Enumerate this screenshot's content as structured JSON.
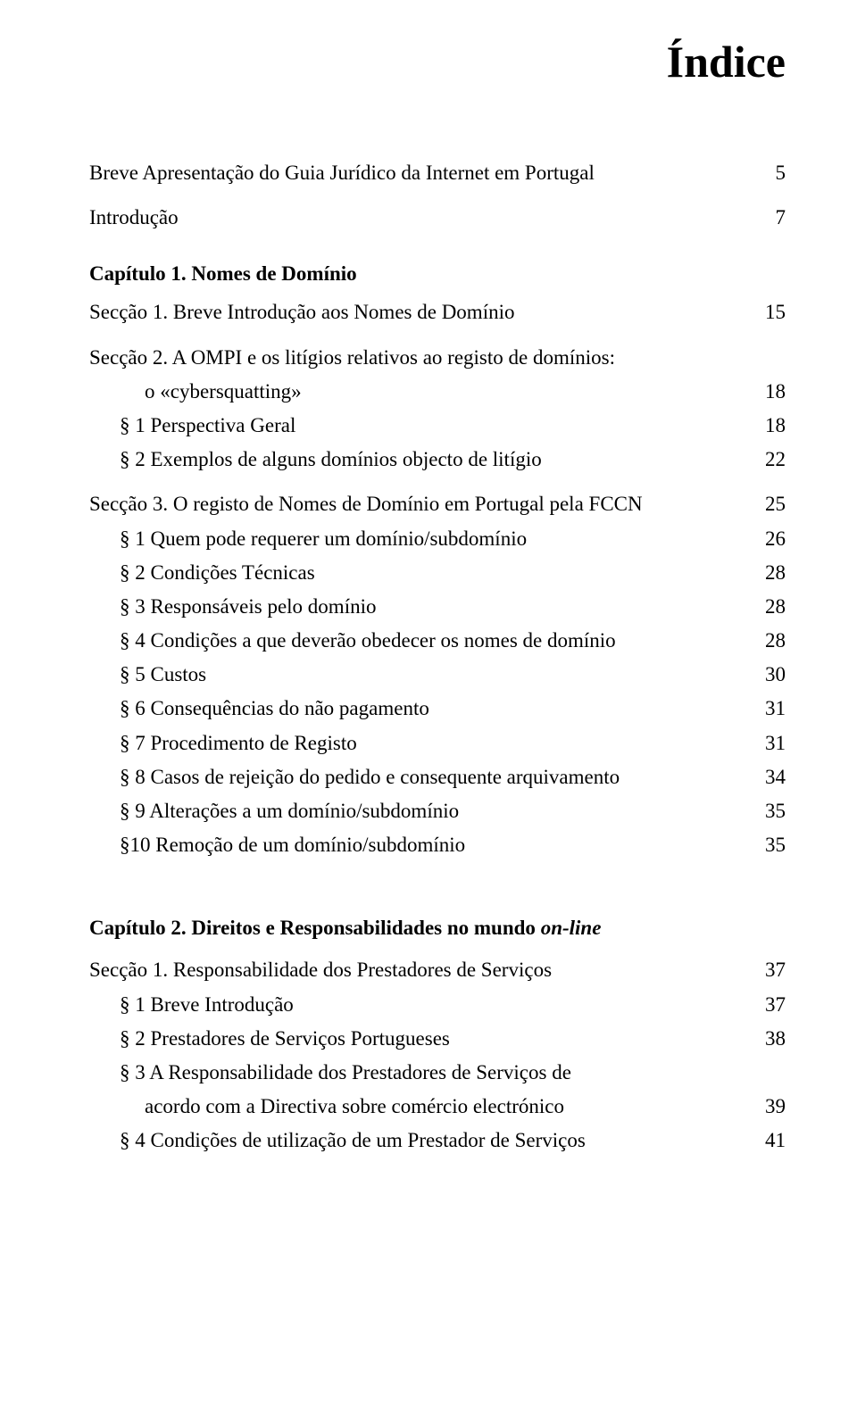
{
  "colors": {
    "background": "#ffffff",
    "text": "#000000"
  },
  "typography": {
    "family": "Times New Roman",
    "title_size_pt": 38,
    "body_size_pt": 17
  },
  "title": "Índice",
  "entries": {
    "breve_apresentacao": {
      "label": "Breve Apresentação do Guia Jurídico da Internet em Portugal",
      "page": "5"
    },
    "introducao": {
      "label": "Introdução",
      "page": "7"
    },
    "cap1": {
      "label": "Capítulo 1.  Nomes de Domínio"
    },
    "sec1_1": {
      "label": "Secção 1.  Breve Introdução aos Nomes de Domínio",
      "page": "15"
    },
    "sec1_2_a": {
      "label": "Secção 2.  A OMPI e os litígios relativos ao registo de domínios:"
    },
    "sec1_2_b": {
      "label": "o «cybersquatting»",
      "page": "18"
    },
    "s1_2_p1": {
      "label": "§ 1  Perspectiva Geral",
      "page": "18"
    },
    "s1_2_p2": {
      "label": "§ 2  Exemplos de alguns domínios objecto de litígio",
      "page": "22"
    },
    "sec1_3": {
      "label": "Secção 3.  O registo de Nomes de Domínio em Portugal pela FCCN",
      "page": "25"
    },
    "s1_3_p1": {
      "label": "§ 1  Quem pode requerer um domínio/subdomínio",
      "page": "26"
    },
    "s1_3_p2": {
      "label": "§ 2  Condições Técnicas",
      "page": "28"
    },
    "s1_3_p3": {
      "label": "§ 3  Responsáveis pelo domínio",
      "page": "28"
    },
    "s1_3_p4": {
      "label": "§ 4  Condições a que deverão obedecer os nomes de domínio",
      "page": "28"
    },
    "s1_3_p5": {
      "label": "§ 5  Custos",
      "page": "30"
    },
    "s1_3_p6": {
      "label": "§ 6  Consequências do não pagamento",
      "page": "31"
    },
    "s1_3_p7": {
      "label": "§ 7  Procedimento de Registo",
      "page": "31"
    },
    "s1_3_p8": {
      "label": "§ 8  Casos de rejeição do pedido e consequente arquivamento",
      "page": "34"
    },
    "s1_3_p9": {
      "label": "§ 9  Alterações a um domínio/subdomínio",
      "page": "35"
    },
    "s1_3_p10": {
      "label": "§10  Remoção de um domínio/subdomínio",
      "page": "35"
    },
    "cap2_pref": "Capítulo 2.  Direitos e Responsabilidades no mundo ",
    "cap2_ital": "on-line",
    "sec2_1": {
      "label": "Secção 1.  Responsabilidade dos Prestadores de Serviços",
      "page": "37"
    },
    "s2_1_p1": {
      "label": "§ 1  Breve Introdução",
      "page": "37"
    },
    "s2_1_p2": {
      "label": "§ 2  Prestadores de Serviços Portugueses",
      "page": "38"
    },
    "s2_1_p3a": {
      "label": "§ 3  A Responsabilidade dos Prestadores de Serviços de"
    },
    "s2_1_p3b": {
      "label": "acordo com a Directiva sobre comércio electrónico",
      "page": "39"
    },
    "s2_1_p4": {
      "label": "§ 4  Condições de utilização de um Prestador de Serviços",
      "page": "41"
    }
  }
}
